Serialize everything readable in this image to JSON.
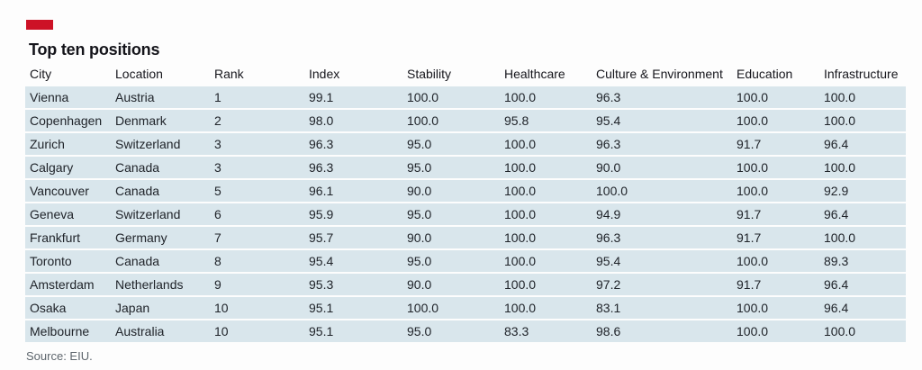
{
  "colors": {
    "accent": "#cd1226",
    "row_bg": "#d9e6ec"
  },
  "title": "Top ten positions",
  "source": "Source: EIU.",
  "chart_data": {
    "type": "table",
    "title": "Top ten positions",
    "columns": [
      "City",
      "Location",
      "Rank",
      "Index",
      "Stability",
      "Healthcare",
      "Culture & Environment",
      "Education",
      "Infrastructure"
    ],
    "rows": [
      [
        "Vienna",
        "Austria",
        "1",
        "99.1",
        "100.0",
        "100.0",
        "96.3",
        "100.0",
        "100.0"
      ],
      [
        "Copenhagen",
        "Denmark",
        "2",
        "98.0",
        "100.0",
        "95.8",
        "95.4",
        "100.0",
        "100.0"
      ],
      [
        "Zurich",
        "Switzerland",
        "3",
        "96.3",
        "95.0",
        "100.0",
        "96.3",
        "91.7",
        "96.4"
      ],
      [
        "Calgary",
        "Canada",
        "3",
        "96.3",
        "95.0",
        "100.0",
        "90.0",
        "100.0",
        "100.0"
      ],
      [
        "Vancouver",
        "Canada",
        "5",
        "96.1",
        "90.0",
        "100.0",
        "100.0",
        "100.0",
        "92.9"
      ],
      [
        "Geneva",
        "Switzerland",
        "6",
        "95.9",
        "95.0",
        "100.0",
        "94.9",
        "91.7",
        "96.4"
      ],
      [
        "Frankfurt",
        "Germany",
        "7",
        "95.7",
        "90.0",
        "100.0",
        "96.3",
        "91.7",
        "100.0"
      ],
      [
        "Toronto",
        "Canada",
        "8",
        "95.4",
        "95.0",
        "100.0",
        "95.4",
        "100.0",
        "89.3"
      ],
      [
        "Amsterdam",
        "Netherlands",
        "9",
        "95.3",
        "90.0",
        "100.0",
        "97.2",
        "91.7",
        "96.4"
      ],
      [
        "Osaka",
        "Japan",
        "10",
        "95.1",
        "100.0",
        "100.0",
        "83.1",
        "100.0",
        "96.4"
      ],
      [
        "Melbourne",
        "Australia",
        "10",
        "95.1",
        "95.0",
        "83.3",
        "98.6",
        "100.0",
        "100.0"
      ]
    ],
    "source": "Source: EIU."
  }
}
